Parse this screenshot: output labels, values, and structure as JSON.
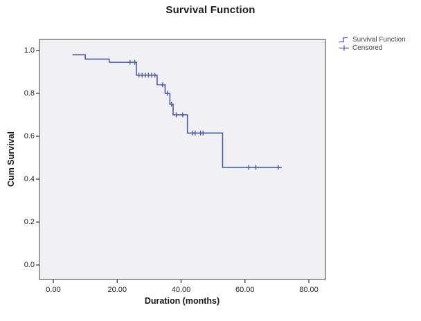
{
  "title": "Survival Function",
  "legend": {
    "items": [
      {
        "label": "Survival Function",
        "glyph": "step-line"
      },
      {
        "label": "Censored",
        "glyph": "plus-marker"
      }
    ]
  },
  "chart_data": {
    "type": "line",
    "subtype": "kaplan-meier-step-function",
    "title": "Survival Function",
    "xlabel": "Duration (months)",
    "ylabel": "Cum Survival",
    "xlim": [
      0,
      80
    ],
    "ylim": [
      0.0,
      1.0
    ],
    "grid": false,
    "legend_position": "upper-right-outside",
    "x_ticks": [
      {
        "t": 0,
        "label": "0.00"
      },
      {
        "t": 20,
        "label": "20.00"
      },
      {
        "t": 40,
        "label": "40.00"
      },
      {
        "t": 60,
        "label": "60.00"
      },
      {
        "t": 80,
        "label": "80.00"
      }
    ],
    "y_ticks": [
      {
        "s": 0.0,
        "label": "0.0"
      },
      {
        "s": 0.2,
        "label": "0.2"
      },
      {
        "s": 0.4,
        "label": "0.4"
      },
      {
        "s": 0.6,
        "label": "0.6"
      },
      {
        "s": 0.8,
        "label": "0.8"
      },
      {
        "s": 1.0,
        "label": "1.0"
      }
    ],
    "series": [
      {
        "name": "Survival Function",
        "start": {
          "t": 6.0,
          "s": 0.98
        },
        "steps": [
          {
            "t": 10.0,
            "s": 0.96
          },
          {
            "t": 17.5,
            "s": 0.945
          },
          {
            "t": 26.0,
            "s": 0.885
          },
          {
            "t": 32.5,
            "s": 0.84
          },
          {
            "t": 35.0,
            "s": 0.8
          },
          {
            "t": 36.5,
            "s": 0.75
          },
          {
            "t": 37.5,
            "s": 0.7
          },
          {
            "t": 42.0,
            "s": 0.615
          },
          {
            "t": 53.0,
            "s": 0.455
          }
        ],
        "end_t": 71.5
      }
    ],
    "censored_points": [
      {
        "t": 24.0,
        "s": 0.945
      },
      {
        "t": 25.5,
        "s": 0.945
      },
      {
        "t": 26.8,
        "s": 0.885
      },
      {
        "t": 27.8,
        "s": 0.885
      },
      {
        "t": 28.8,
        "s": 0.885
      },
      {
        "t": 29.8,
        "s": 0.885
      },
      {
        "t": 30.8,
        "s": 0.885
      },
      {
        "t": 31.8,
        "s": 0.885
      },
      {
        "t": 34.2,
        "s": 0.84
      },
      {
        "t": 35.7,
        "s": 0.8
      },
      {
        "t": 37.0,
        "s": 0.75
      },
      {
        "t": 38.5,
        "s": 0.7
      },
      {
        "t": 40.5,
        "s": 0.7
      },
      {
        "t": 43.5,
        "s": 0.615
      },
      {
        "t": 44.4,
        "s": 0.615
      },
      {
        "t": 46.1,
        "s": 0.615
      },
      {
        "t": 46.9,
        "s": 0.615
      },
      {
        "t": 61.2,
        "s": 0.455
      },
      {
        "t": 63.4,
        "s": 0.455
      },
      {
        "t": 70.4,
        "s": 0.455
      }
    ],
    "colors": {
      "line": "#4e5c9e",
      "plot_bg": "#f1f0f4",
      "frame": "#5c5c5c",
      "tick": "#2a2a2a"
    }
  }
}
